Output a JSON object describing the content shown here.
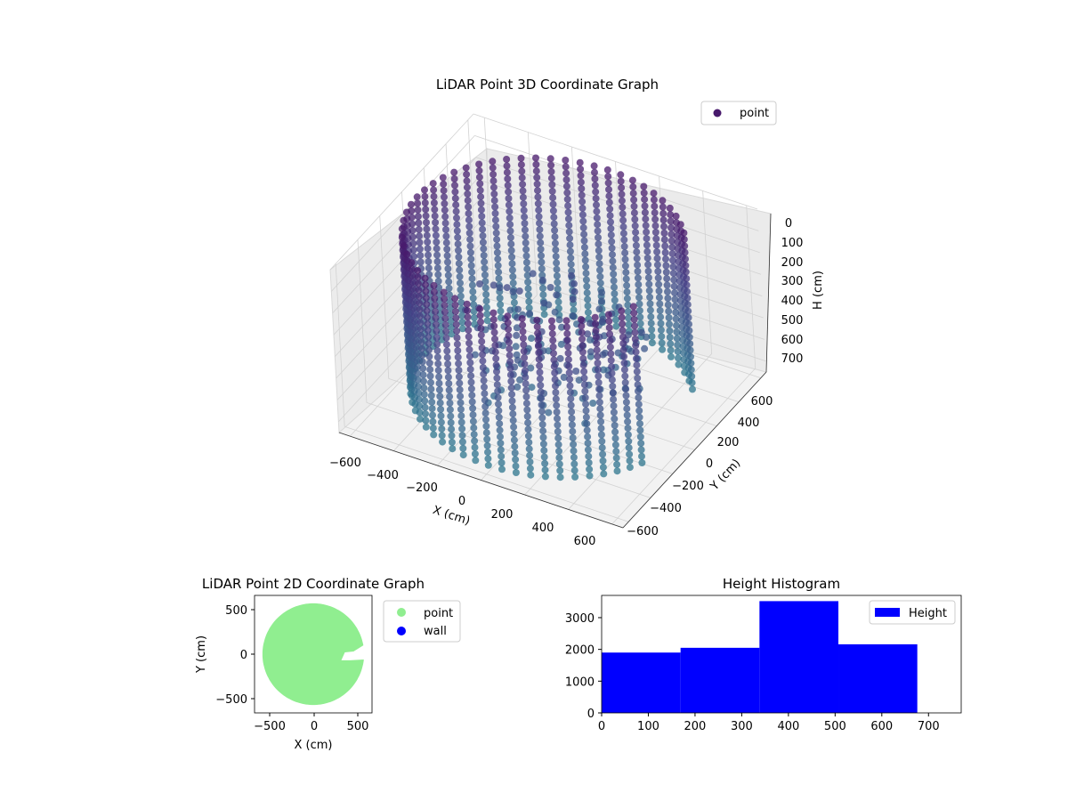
{
  "colors": {
    "point_3d": "#481a6c",
    "point_2d": "#90ee90",
    "wall_2d": "#0000ff",
    "hist_bar": "#0000ff",
    "pane": "#f2f2f2",
    "grid": "#d0d0d0"
  },
  "chart_data": [
    {
      "type": "scatter",
      "subtype": "3d",
      "title": "LiDAR Point 3D Coordinate Graph",
      "xlabel": "X (cm)",
      "ylabel": "Y (cm)",
      "zlabel": "H (cm)",
      "x_ticks": [
        "−600",
        "−400",
        "−200",
        "0",
        "200",
        "400",
        "600"
      ],
      "y_ticks": [
        "600",
        "400",
        "200",
        "0",
        "−200",
        "−400",
        "−600"
      ],
      "z_ticks": [
        "0",
        "100",
        "200",
        "300",
        "400",
        "500",
        "600",
        "700"
      ],
      "xlim": [
        -650,
        650
      ],
      "ylim": [
        -650,
        650
      ],
      "zlim": [
        0,
        750
      ],
      "z_inverted": true,
      "legend": {
        "entries": [
          "point"
        ],
        "position": "upper right"
      },
      "series": [
        {
          "name": "point",
          "description_shape": "ring of stacked points (radius ~580 cm) from H 0 to ~730 cm, with a gap on the +X side and interior points at low height",
          "ring_radius": 580,
          "gap_angle_range_deg": [
            -20,
            35
          ],
          "h_range": [
            0,
            730
          ]
        }
      ]
    },
    {
      "type": "scatter",
      "title": "LiDAR Point 2D Coordinate Graph",
      "xlabel": "X (cm)",
      "ylabel": "Y (cm)",
      "x_ticks": [
        "−500",
        "0",
        "500"
      ],
      "y_ticks": [
        "500",
        "0",
        "−500"
      ],
      "xlim": [
        -670,
        670
      ],
      "ylim": [
        -670,
        670
      ],
      "legend": {
        "entries": [
          "point",
          "wall"
        ],
        "position": "outside right"
      },
      "series": [
        {
          "name": "point",
          "description_shape": "filled disk of radius ~580 cm centered near (0,0) with a notch on the +X side"
        },
        {
          "name": "wall",
          "values": []
        }
      ]
    },
    {
      "type": "bar",
      "subtype": "histogram",
      "title": "Height Histogram",
      "x_ticks": [
        "0",
        "100",
        "200",
        "300",
        "400",
        "500",
        "600",
        "700"
      ],
      "y_ticks": [
        "0",
        "1000",
        "2000",
        "3000"
      ],
      "xlim": [
        0,
        770
      ],
      "ylim": [
        0,
        3700
      ],
      "legend": {
        "entries": [
          "Height"
        ],
        "position": "upper right"
      },
      "bins": [
        {
          "start": 0,
          "end": 169,
          "count": 1900
        },
        {
          "start": 169,
          "end": 338,
          "count": 2050
        },
        {
          "start": 338,
          "end": 507,
          "count": 3520
        },
        {
          "start": 507,
          "end": 676,
          "count": 2160
        }
      ]
    }
  ]
}
